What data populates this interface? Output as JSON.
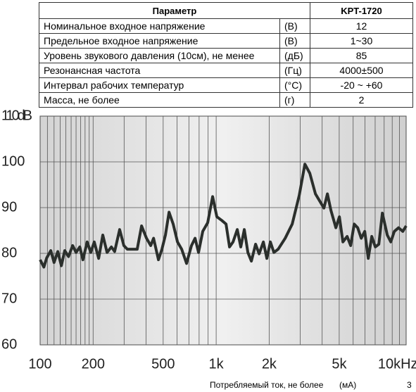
{
  "table": {
    "header": [
      "Параметр",
      "KPT-1720"
    ],
    "rows": [
      [
        "Номинальное входное напряжение",
        "(В)",
        "12"
      ],
      [
        "Предельное входное напряжение",
        "(В)",
        "1~30"
      ],
      [
        "Уровень звукового давления (10см), не менее",
        "(дБ)",
        "85"
      ],
      [
        "Резонансная частота",
        "(Гц)",
        "4000±500"
      ],
      [
        "Интервал рабочих температур",
        "(°С)",
        "-20 ~ +60"
      ],
      [
        "Масса, не более",
        "(г)",
        "2"
      ]
    ]
  },
  "chart_data": {
    "type": "line",
    "log_x": true,
    "grid": true,
    "color": "#2b2f2c",
    "xlim": [
      100,
      12000
    ],
    "ylim": [
      60,
      110
    ],
    "yticks": [
      60,
      70,
      80,
      90,
      {
        "value": 100,
        "label": "100"
      },
      {
        "value": 110,
        "label": "110dB"
      }
    ],
    "xticks": [
      100,
      200,
      500,
      {
        "value": 1000,
        "label": "1k"
      },
      {
        "value": 2000,
        "label": "2k"
      },
      {
        "value": 5000,
        "label": "5k"
      },
      {
        "value": 10000,
        "label": "10kHz"
      }
    ],
    "xgrid": [
      100,
      110,
      120,
      130,
      140,
      150,
      160,
      170,
      180,
      190,
      200,
      300,
      400,
      500,
      600,
      700,
      800,
      900,
      1000,
      2000,
      3000,
      4000,
      5000,
      6000,
      7000,
      8000,
      9000,
      10000,
      11000,
      12000
    ],
    "x": [
      100,
      105,
      109,
      115,
      120,
      126,
      132,
      138,
      145,
      153,
      160,
      168,
      175,
      185,
      194,
      203,
      215,
      227,
      240,
      254,
      265,
      283,
      299,
      313,
      356,
      377,
      402,
      425,
      441,
      470,
      492,
      515,
      540,
      570,
      603,
      637,
      679,
      724,
      759,
      794,
      839,
      895,
      955,
      1009,
      1076,
      1138,
      1191,
      1247,
      1318,
      1380,
      1445,
      1514,
      1585,
      1675,
      1754,
      1854,
      1941,
      2032,
      2128,
      2249,
      2466,
      2704,
      2965,
      3192,
      3404,
      3664,
      3908,
      4093,
      4285,
      4487,
      4786,
      5012,
      5248,
      5546,
      5808,
      6081,
      6368,
      6668,
      6982,
      7311,
      7656,
      8017,
      8395,
      8790,
      9376,
      9817,
      10280,
      10865,
      11482,
      12000
    ],
    "values": [
      78.6,
      77,
      79,
      80.6,
      78,
      80.4,
      77.3,
      80.6,
      79.3,
      81.7,
      80.2,
      81.4,
      78.6,
      82.5,
      80.2,
      82.5,
      78.9,
      84,
      80.2,
      81.4,
      80.4,
      85.2,
      81.7,
      80.9,
      80.9,
      86,
      83.3,
      81.7,
      83.3,
      78.6,
      80.9,
      84,
      89,
      86.4,
      82.5,
      80.9,
      77.8,
      81.7,
      83.3,
      80.2,
      84.8,
      86.7,
      92.4,
      88,
      87.2,
      86.4,
      81.4,
      82.5,
      85.2,
      81.4,
      85.2,
      80.2,
      78.3,
      82,
      79.9,
      82.5,
      78.9,
      82.5,
      80.2,
      80.9,
      83.3,
      86.4,
      92.7,
      99.5,
      97.5,
      93,
      91.2,
      89.9,
      93,
      89.4,
      85.6,
      88,
      82.5,
      83.7,
      81.7,
      86.4,
      85.6,
      83.3,
      84.8,
      78.9,
      83.7,
      81.4,
      82,
      88.8,
      84,
      82.5,
      84.8,
      85.6,
      84.8,
      86
    ]
  },
  "footer": {
    "label": "Потребляемый ток, не более",
    "unit": "(мА)",
    "value": "3"
  }
}
